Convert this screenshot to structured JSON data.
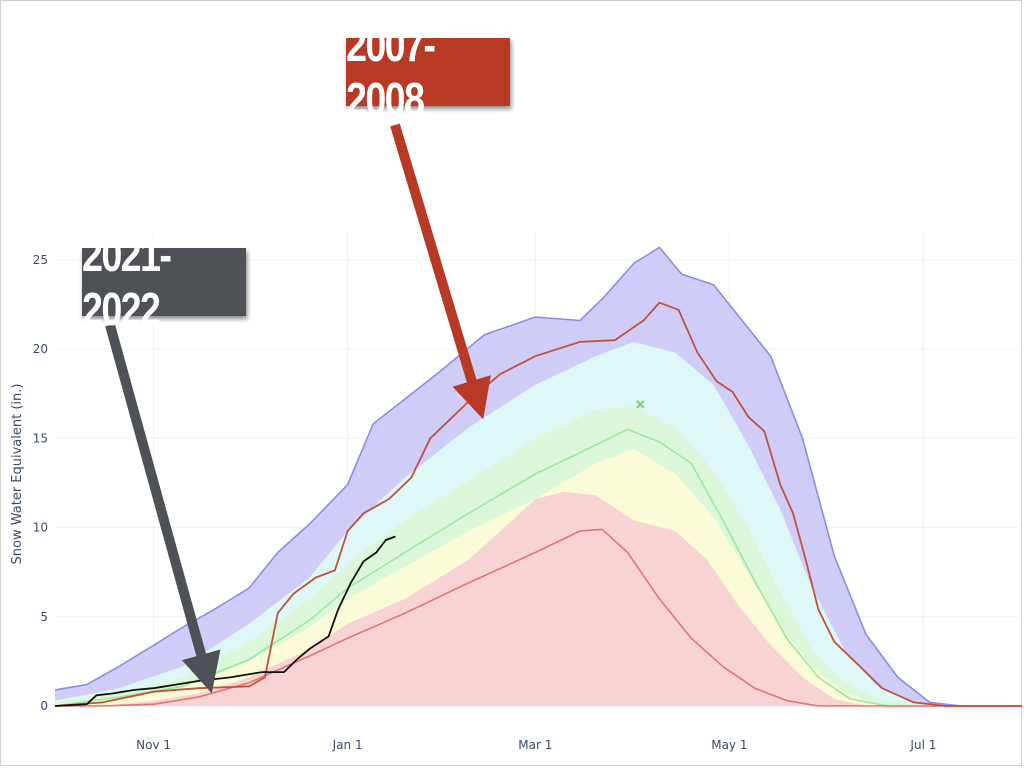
{
  "callouts": {
    "red": "2007-2008",
    "gray": "2021-2022"
  },
  "chart_data": {
    "type": "area",
    "title": "",
    "xlabel": "",
    "ylabel": "Snow Water Equivalent (in.)",
    "ylim": [
      0,
      26
    ],
    "xlim": [
      "Oct 1",
      "Aug 1"
    ],
    "x_ticks": [
      {
        "label": "Nov 1",
        "day": 31
      },
      {
        "label": "Jan 1",
        "day": 92
      },
      {
        "label": "Mar 1",
        "day": 151
      },
      {
        "label": "May 1",
        "day": 212
      },
      {
        "label": "Jul 1",
        "day": 273
      }
    ],
    "y_ticks": [
      0,
      5,
      10,
      15,
      20,
      25
    ],
    "grid": true,
    "bands": [
      {
        "name": "band-max",
        "color": "#cfcdf7",
        "edge": "#8c8ce8",
        "upper": [
          [
            0,
            0.9
          ],
          [
            10,
            1.2
          ],
          [
            20,
            2.2
          ],
          [
            31,
            3.4
          ],
          [
            40,
            4.4
          ],
          [
            50,
            5.4
          ],
          [
            61,
            6.6
          ],
          [
            70,
            8.6
          ],
          [
            80,
            10.2
          ],
          [
            92,
            12.4
          ],
          [
            100,
            15.8
          ],
          [
            110,
            17.2
          ],
          [
            120,
            18.6
          ],
          [
            135,
            20.8
          ],
          [
            151,
            21.8
          ],
          [
            165,
            21.6
          ],
          [
            172,
            22.8
          ],
          [
            182,
            24.8
          ],
          [
            190,
            25.7
          ],
          [
            197,
            24.2
          ],
          [
            207,
            23.6
          ],
          [
            216,
            21.6
          ],
          [
            225,
            19.6
          ],
          [
            235,
            15.0
          ],
          [
            245,
            8.4
          ],
          [
            255,
            4.0
          ],
          [
            265,
            1.6
          ],
          [
            275,
            0.2
          ],
          [
            285,
            0
          ],
          [
            304,
            0
          ]
        ],
        "lower": [
          [
            0,
            0
          ],
          [
            304,
            0
          ]
        ]
      },
      {
        "name": "band-high",
        "color": "#def8f8",
        "upper": [
          [
            0,
            0.3
          ],
          [
            20,
            1.0
          ],
          [
            40,
            2.2
          ],
          [
            61,
            4.6
          ],
          [
            80,
            7.2
          ],
          [
            92,
            9.8
          ],
          [
            110,
            12.8
          ],
          [
            130,
            15.6
          ],
          [
            151,
            18.0
          ],
          [
            170,
            19.6
          ],
          [
            182,
            20.4
          ],
          [
            195,
            19.8
          ],
          [
            207,
            18.0
          ],
          [
            218,
            14.6
          ],
          [
            228,
            11.0
          ],
          [
            238,
            6.6
          ],
          [
            248,
            3.2
          ],
          [
            258,
            1.2
          ],
          [
            270,
            0.2
          ],
          [
            285,
            0
          ],
          [
            304,
            0
          ]
        ],
        "lower": [
          [
            0,
            0
          ],
          [
            304,
            0
          ]
        ]
      },
      {
        "name": "band-mid",
        "color": "#dcf6da",
        "upper": [
          [
            0,
            0.2
          ],
          [
            20,
            0.7
          ],
          [
            40,
            1.6
          ],
          [
            61,
            3.6
          ],
          [
            80,
            6.0
          ],
          [
            92,
            8.0
          ],
          [
            110,
            10.4
          ],
          [
            130,
            12.6
          ],
          [
            151,
            15.0
          ],
          [
            170,
            16.6
          ],
          [
            182,
            16.8
          ],
          [
            195,
            15.6
          ],
          [
            207,
            13.2
          ],
          [
            218,
            10.0
          ],
          [
            228,
            6.4
          ],
          [
            238,
            3.2
          ],
          [
            248,
            1.4
          ],
          [
            260,
            0.3
          ],
          [
            272,
            0
          ],
          [
            304,
            0
          ]
        ],
        "lower": [
          [
            0,
            0
          ],
          [
            304,
            0
          ]
        ]
      },
      {
        "name": "band-low",
        "color": "#fbfbd8",
        "upper": [
          [
            0,
            0.1
          ],
          [
            20,
            0.4
          ],
          [
            40,
            1.0
          ],
          [
            61,
            2.5
          ],
          [
            80,
            4.4
          ],
          [
            92,
            6.0
          ],
          [
            110,
            7.8
          ],
          [
            130,
            9.8
          ],
          [
            151,
            11.6
          ],
          [
            170,
            13.6
          ],
          [
            182,
            14.4
          ],
          [
            195,
            13.0
          ],
          [
            207,
            10.6
          ],
          [
            218,
            7.4
          ],
          [
            228,
            4.4
          ],
          [
            238,
            2.2
          ],
          [
            248,
            0.8
          ],
          [
            258,
            0.1
          ],
          [
            270,
            0
          ],
          [
            304,
            0
          ]
        ],
        "lower": [
          [
            0,
            0
          ],
          [
            304,
            0
          ]
        ]
      },
      {
        "name": "band-min",
        "color": "#f7d3d3",
        "upper": [
          [
            0,
            0
          ],
          [
            15,
            0
          ],
          [
            31,
            0.3
          ],
          [
            45,
            0.7
          ],
          [
            61,
            1.6
          ],
          [
            80,
            3.2
          ],
          [
            92,
            4.6
          ],
          [
            110,
            6.0
          ],
          [
            130,
            8.2
          ],
          [
            145,
            10.6
          ],
          [
            151,
            11.6
          ],
          [
            160,
            12.0
          ],
          [
            170,
            11.8
          ],
          [
            182,
            10.4
          ],
          [
            195,
            9.8
          ],
          [
            205,
            8.2
          ],
          [
            215,
            5.6
          ],
          [
            225,
            3.4
          ],
          [
            235,
            1.6
          ],
          [
            245,
            0.4
          ],
          [
            255,
            0
          ],
          [
            304,
            0
          ]
        ],
        "lower": [
          [
            0,
            0
          ],
          [
            304,
            0
          ]
        ]
      }
    ],
    "series": [
      {
        "name": "",
        "color": "#8c8ce8",
        "width": 1.6,
        "points": [
          [
            0,
            0.9
          ],
          [
            10,
            1.2
          ],
          [
            20,
            2.2
          ],
          [
            31,
            3.4
          ],
          [
            40,
            4.4
          ],
          [
            50,
            5.4
          ],
          [
            61,
            6.6
          ],
          [
            70,
            8.6
          ],
          [
            80,
            10.2
          ],
          [
            92,
            12.4
          ],
          [
            100,
            15.8
          ],
          [
            110,
            17.2
          ],
          [
            120,
            18.6
          ],
          [
            135,
            20.8
          ],
          [
            151,
            21.8
          ],
          [
            165,
            21.6
          ],
          [
            172,
            22.8
          ],
          [
            182,
            24.8
          ],
          [
            190,
            25.7
          ],
          [
            197,
            24.2
          ],
          [
            207,
            23.6
          ],
          [
            216,
            21.6
          ],
          [
            225,
            19.6
          ],
          [
            235,
            15.0
          ],
          [
            245,
            8.4
          ],
          [
            255,
            4.0
          ],
          [
            265,
            1.6
          ],
          [
            275,
            0.2
          ],
          [
            285,
            0
          ],
          [
            304,
            0
          ]
        ]
      },
      {
        "name": "",
        "color": "#9ee89a",
        "width": 1.6,
        "points": [
          [
            0,
            0
          ],
          [
            20,
            0.5
          ],
          [
            40,
            1.1
          ],
          [
            61,
            2.6
          ],
          [
            80,
            4.8
          ],
          [
            92,
            6.6
          ],
          [
            110,
            8.6
          ],
          [
            130,
            10.8
          ],
          [
            151,
            13.0
          ],
          [
            165,
            14.2
          ],
          [
            180,
            15.5
          ],
          [
            190,
            14.8
          ],
          [
            200,
            13.6
          ],
          [
            210,
            10.4
          ],
          [
            220,
            7.0
          ],
          [
            230,
            3.8
          ],
          [
            240,
            1.6
          ],
          [
            250,
            0.4
          ],
          [
            262,
            0
          ],
          [
            304,
            0
          ]
        ]
      },
      {
        "name": "",
        "color": "#e57373",
        "width": 1.6,
        "points": [
          [
            0,
            0
          ],
          [
            15,
            0
          ],
          [
            31,
            0.1
          ],
          [
            45,
            0.5
          ],
          [
            61,
            1.3
          ],
          [
            80,
            2.8
          ],
          [
            92,
            3.8
          ],
          [
            110,
            5.2
          ],
          [
            130,
            6.9
          ],
          [
            151,
            8.6
          ],
          [
            165,
            9.8
          ],
          [
            172,
            9.9
          ],
          [
            180,
            8.6
          ],
          [
            190,
            6.0
          ],
          [
            200,
            3.8
          ],
          [
            210,
            2.2
          ],
          [
            220,
            1.0
          ],
          [
            230,
            0.3
          ],
          [
            240,
            0
          ],
          [
            304,
            0
          ]
        ]
      },
      {
        "name": "2007-2008",
        "color": "#c0523c",
        "width": 1.8,
        "points": [
          [
            0,
            0
          ],
          [
            15,
            0.2
          ],
          [
            31,
            0.8
          ],
          [
            45,
            1.0
          ],
          [
            61,
            1.1
          ],
          [
            66,
            1.6
          ],
          [
            70,
            5.2
          ],
          [
            75,
            6.3
          ],
          [
            82,
            7.2
          ],
          [
            88,
            7.6
          ],
          [
            92,
            9.8
          ],
          [
            97,
            10.8
          ],
          [
            105,
            11.6
          ],
          [
            112,
            12.8
          ],
          [
            118,
            15.0
          ],
          [
            125,
            16.2
          ],
          [
            132,
            17.4
          ],
          [
            140,
            18.6
          ],
          [
            151,
            19.6
          ],
          [
            165,
            20.4
          ],
          [
            176,
            20.5
          ],
          [
            185,
            21.6
          ],
          [
            190,
            22.6
          ],
          [
            196,
            22.2
          ],
          [
            202,
            19.8
          ],
          [
            208,
            18.2
          ],
          [
            213,
            17.6
          ],
          [
            218,
            16.2
          ],
          [
            223,
            15.4
          ],
          [
            228,
            12.4
          ],
          [
            232,
            10.8
          ],
          [
            236,
            8.2
          ],
          [
            240,
            5.4
          ],
          [
            245,
            3.6
          ],
          [
            252,
            2.4
          ],
          [
            260,
            1.0
          ],
          [
            270,
            0.2
          ],
          [
            280,
            0
          ],
          [
            304,
            0
          ]
        ]
      },
      {
        "name": "2021-2022",
        "color": "#111111",
        "width": 1.8,
        "points": [
          [
            0,
            0
          ],
          [
            10,
            0.1
          ],
          [
            13,
            0.6
          ],
          [
            18,
            0.7
          ],
          [
            25,
            0.9
          ],
          [
            31,
            1.0
          ],
          [
            38,
            1.2
          ],
          [
            45,
            1.4
          ],
          [
            55,
            1.6
          ],
          [
            65,
            1.9
          ],
          [
            72,
            1.9
          ],
          [
            76,
            2.6
          ],
          [
            80,
            3.2
          ],
          [
            86,
            3.9
          ],
          [
            89,
            5.4
          ],
          [
            93,
            6.9
          ],
          [
            97,
            8.1
          ],
          [
            101,
            8.6
          ],
          [
            104,
            9.3
          ],
          [
            107,
            9.5
          ]
        ]
      }
    ],
    "markers": [
      {
        "name": "median-peak-marker",
        "day": 184,
        "y": 16.9,
        "symbol": "x",
        "color": "#7bd86b"
      }
    ],
    "annotations": [
      {
        "name": "red-arrow",
        "color": "#b83a24",
        "from": [
          395,
          125
        ],
        "to": [
          478,
          405
        ]
      },
      {
        "name": "gray-arrow",
        "color": "#4e5156",
        "from": [
          110,
          325
        ],
        "to": [
          208,
          680
        ]
      }
    ]
  }
}
